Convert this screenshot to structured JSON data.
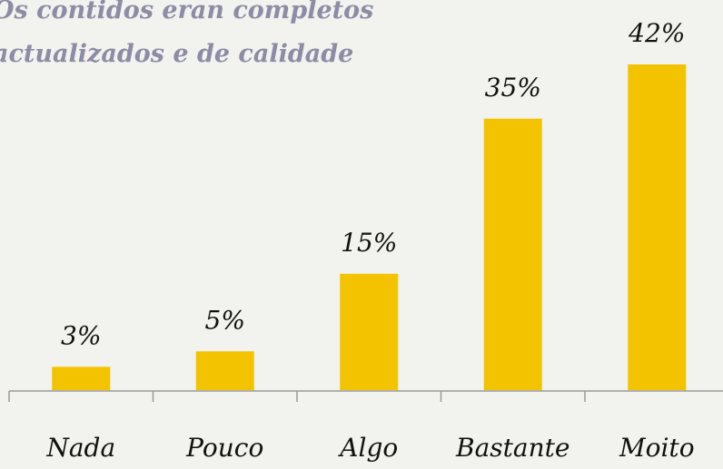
{
  "chart_data": {
    "type": "bar",
    "title": [
      "Os contidos eran completos",
      "actualizados e de calidade"
    ],
    "categories": [
      "Nada",
      "Pouco",
      "Algo",
      "Bastante",
      "Moito"
    ],
    "values": [
      3,
      5,
      15,
      35,
      42
    ],
    "value_labels": [
      "3%",
      "5%",
      "15%",
      "35%",
      "42%"
    ],
    "color": "#f4c300"
  }
}
